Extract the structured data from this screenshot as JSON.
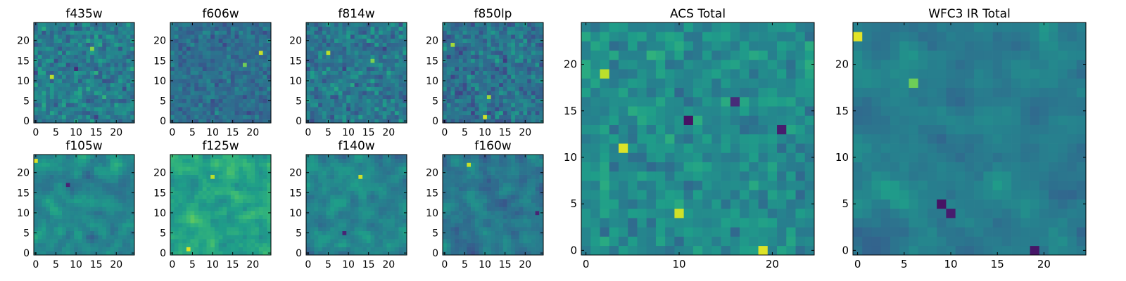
{
  "chart_data": [
    {
      "type": "heatmap",
      "title": "f435w",
      "size": 25,
      "xticks": [
        0,
        5,
        10,
        15,
        20
      ],
      "yticks": [
        0,
        5,
        10,
        15,
        20
      ],
      "colormap": "viridis",
      "seed": 11,
      "smooth": 0,
      "mean": 0.42,
      "spread": 0.16,
      "hotspots": [
        [
          4,
          11,
          0.9
        ],
        [
          14,
          18,
          0.82
        ],
        [
          10,
          13,
          0.12
        ]
      ]
    },
    {
      "type": "heatmap",
      "title": "f606w",
      "size": 25,
      "xticks": [
        0,
        5,
        10,
        15,
        20
      ],
      "yticks": [
        0,
        5,
        10,
        15,
        20
      ],
      "colormap": "viridis",
      "seed": 23,
      "smooth": 0,
      "mean": 0.36,
      "spread": 0.11,
      "hotspots": [
        [
          22,
          17,
          0.92
        ],
        [
          18,
          14,
          0.78
        ]
      ]
    },
    {
      "type": "heatmap",
      "title": "f814w",
      "size": 25,
      "xticks": [
        0,
        5,
        10,
        15,
        20
      ],
      "yticks": [
        0,
        5,
        10,
        15,
        20
      ],
      "colormap": "viridis",
      "seed": 37,
      "smooth": 0,
      "mean": 0.4,
      "spread": 0.15,
      "hotspots": [
        [
          5,
          17,
          0.9
        ],
        [
          16,
          15,
          0.8
        ]
      ]
    },
    {
      "type": "heatmap",
      "title": "f850lp",
      "size": 25,
      "xticks": [
        0,
        5,
        10,
        15,
        20
      ],
      "yticks": [
        0,
        5,
        10,
        15,
        20
      ],
      "colormap": "viridis",
      "seed": 53,
      "smooth": 0,
      "mean": 0.38,
      "spread": 0.15,
      "hotspots": [
        [
          10,
          1,
          0.93
        ],
        [
          11,
          6,
          0.85
        ],
        [
          2,
          19,
          0.86
        ]
      ]
    },
    {
      "type": "heatmap",
      "title": "f105w",
      "size": 25,
      "xticks": [
        0,
        5,
        10,
        15,
        20
      ],
      "yticks": [
        0,
        5,
        10,
        15,
        20
      ],
      "colormap": "viridis",
      "seed": 71,
      "smooth": 1,
      "mean": 0.46,
      "spread": 0.15,
      "hotspots": [
        [
          0,
          23,
          0.95
        ],
        [
          8,
          17,
          0.1
        ]
      ]
    },
    {
      "type": "heatmap",
      "title": "f125w",
      "size": 25,
      "xticks": [
        0,
        5,
        10,
        15,
        20
      ],
      "yticks": [
        0,
        5,
        10,
        15,
        20
      ],
      "colormap": "viridis",
      "seed": 89,
      "smooth": 1,
      "mean": 0.58,
      "spread": 0.16,
      "hotspots": [
        [
          4,
          1,
          0.95
        ],
        [
          10,
          19,
          0.9
        ]
      ]
    },
    {
      "type": "heatmap",
      "title": "f140w",
      "size": 25,
      "xticks": [
        0,
        5,
        10,
        15,
        20
      ],
      "yticks": [
        0,
        5,
        10,
        15,
        20
      ],
      "colormap": "viridis",
      "seed": 97,
      "smooth": 1,
      "mean": 0.45,
      "spread": 0.14,
      "hotspots": [
        [
          13,
          19,
          0.93
        ],
        [
          9,
          5,
          0.1
        ]
      ]
    },
    {
      "type": "heatmap",
      "title": "f160w",
      "size": 25,
      "xticks": [
        0,
        5,
        10,
        15,
        20
      ],
      "yticks": [
        0,
        5,
        10,
        15,
        20
      ],
      "colormap": "viridis",
      "seed": 113,
      "smooth": 1,
      "mean": 0.4,
      "spread": 0.15,
      "hotspots": [
        [
          6,
          22,
          0.92
        ],
        [
          23,
          10,
          0.1
        ]
      ]
    },
    {
      "type": "heatmap",
      "title": "ACS Total",
      "size": 25,
      "xticks": [
        0,
        10,
        20
      ],
      "yticks": [
        0,
        5,
        10,
        15,
        20
      ],
      "colormap": "viridis",
      "seed": 131,
      "smooth": 0,
      "mean": 0.48,
      "spread": 0.12,
      "hotspots": [
        [
          4,
          11,
          0.95
        ],
        [
          10,
          4,
          0.93
        ],
        [
          19,
          0,
          0.95
        ],
        [
          2,
          19,
          0.9
        ],
        [
          11,
          14,
          0.05
        ],
        [
          21,
          13,
          0.08
        ],
        [
          16,
          16,
          0.12
        ]
      ]
    },
    {
      "type": "heatmap",
      "title": "WFC3 IR Total",
      "size": 25,
      "xticks": [
        0,
        5,
        10,
        15,
        20
      ],
      "yticks": [
        0,
        5,
        10,
        15,
        20
      ],
      "colormap": "viridis",
      "seed": 149,
      "smooth": 1,
      "mean": 0.42,
      "spread": 0.12,
      "hotspots": [
        [
          0,
          23,
          0.96
        ],
        [
          9,
          5,
          0.05
        ],
        [
          10,
          4,
          0.08
        ],
        [
          19,
          0,
          0.06
        ],
        [
          6,
          18,
          0.78
        ]
      ]
    }
  ]
}
